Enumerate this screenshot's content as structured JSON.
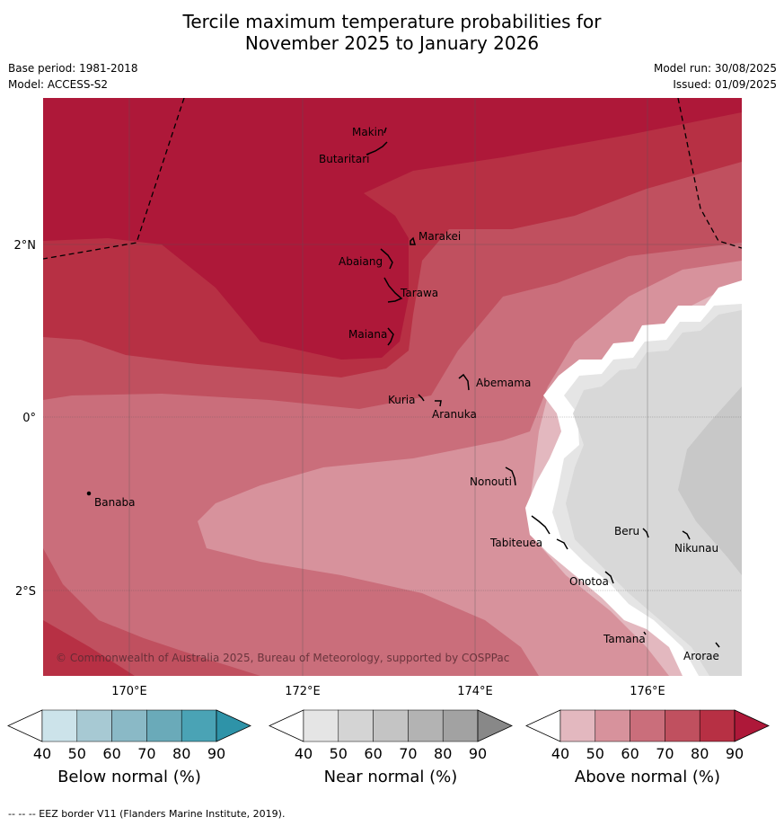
{
  "title_line1": "Tercile maximum temperature probabilities for",
  "title_line2": "November 2025 to January 2026",
  "meta_left": [
    "Base period: 1981-2018",
    "Model: ACCESS-S2"
  ],
  "meta_right": [
    "Model run: 30/08/2025",
    "Issued: 01/09/2025"
  ],
  "copyright": "© Commonwealth of Australia 2025, Bureau of Meteorology, supported by COSPPac",
  "footnote": "--  --  -- EEZ border V11 (Flanders Marine Institute, 2019).",
  "lon_labels": [
    "170°E",
    "172°E",
    "174°E",
    "176°E"
  ],
  "lat_labels": [
    "2°N",
    "0°",
    "2°S"
  ],
  "places": [
    {
      "name": "Makin"
    },
    {
      "name": "Butaritari"
    },
    {
      "name": "Marakei"
    },
    {
      "name": "Abaiang"
    },
    {
      "name": "Tarawa"
    },
    {
      "name": "Maiana"
    },
    {
      "name": "Abemama"
    },
    {
      "name": "Kuria"
    },
    {
      "name": "Aranuka"
    },
    {
      "name": "Nonouti"
    },
    {
      "name": "Banaba"
    },
    {
      "name": "Beru"
    },
    {
      "name": "Tabiteuea"
    },
    {
      "name": "Nikunau"
    },
    {
      "name": "Onotoa"
    },
    {
      "name": "Tamana"
    },
    {
      "name": "Arorae"
    }
  ],
  "colorbars": [
    {
      "label": "Below normal (%)",
      "ticks": [
        "40",
        "50",
        "60",
        "70",
        "80",
        "90"
      ],
      "colors": [
        "#ffffff",
        "#cce3ea",
        "#a7c9d3",
        "#8ab9c6",
        "#6aaab9",
        "#4aa3b5",
        "#2e93a8"
      ]
    },
    {
      "label": "Near normal (%)",
      "ticks": [
        "40",
        "50",
        "60",
        "70",
        "80",
        "90"
      ],
      "colors": [
        "#ffffff",
        "#e5e5e5",
        "#d4d4d4",
        "#c4c4c4",
        "#b3b3b3",
        "#a2a2a2",
        "#888888"
      ]
    },
    {
      "label": "Above normal (%)",
      "ticks": [
        "40",
        "50",
        "60",
        "70",
        "80",
        "90"
      ],
      "colors": [
        "#ffffff",
        "#e3b8bf",
        "#d7929c",
        "#ca6e7b",
        "#c0505f",
        "#b73044",
        "#ae1839"
      ]
    }
  ],
  "colors": {
    "above_90": "#ae1839",
    "above_80": "#b73044",
    "above_70": "#c0505f",
    "above_60": "#ca6e7b",
    "above_50": "#d7929c",
    "above_40": "#e3b8bf",
    "near_50": "#d8d8d8",
    "near_60": "#c8c8c8",
    "near_40": "#e5e5e5"
  }
}
